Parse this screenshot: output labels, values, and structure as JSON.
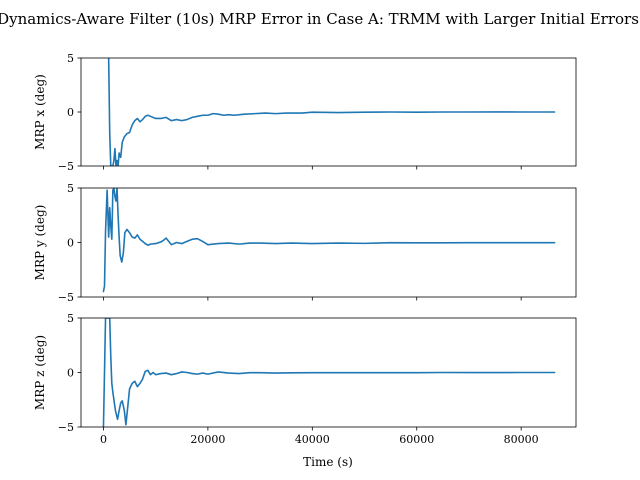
{
  "title": "Dynamics-Aware Filter (10s) MRP Error in Case A: TRMM with Larger Initial Errors",
  "xlabel": "Time (s)",
  "colors": {
    "series": "#1f77b4"
  },
  "chart_data": [
    {
      "type": "line",
      "ylabel": "MRP x (deg)",
      "xlim": [
        -4300,
        90500
      ],
      "ylim": [
        -5,
        5
      ],
      "xticks": [
        0,
        20000,
        40000,
        60000,
        80000
      ],
      "xtick_labels": [
        "",
        "",
        "",
        "",
        ""
      ],
      "yticks": [
        -5,
        0,
        5
      ],
      "ytick_labels": [
        "−5",
        "0",
        "5"
      ],
      "series": [
        {
          "x": [
            1000,
            1200,
            1400,
            1600,
            1800,
            2000,
            2200,
            2400,
            2600,
            2800,
            3000,
            3300,
            3600,
            4000,
            4500,
            5000,
            5500,
            6000,
            6500,
            7000,
            7500,
            8000,
            8500,
            9000,
            10000,
            11000,
            12000,
            13000,
            14000,
            15000,
            16000,
            17000,
            18000,
            19000,
            20000,
            21000,
            22000,
            23000,
            24000,
            25000,
            27000,
            29000,
            31000,
            33000,
            35000,
            38000,
            40000,
            45000,
            50000,
            55000,
            60000,
            65000,
            70000,
            75000,
            80000,
            86400
          ],
          "y": [
            5,
            -2,
            -5,
            -5,
            -5,
            -4.5,
            -3.4,
            -5,
            -4.5,
            -5,
            -3.8,
            -4.2,
            -2.8,
            -2.3,
            -2.0,
            -1.9,
            -1.2,
            -0.8,
            -0.6,
            -0.9,
            -0.7,
            -0.4,
            -0.3,
            -0.4,
            -0.6,
            -0.6,
            -0.5,
            -0.8,
            -0.7,
            -0.8,
            -0.7,
            -0.5,
            -0.4,
            -0.3,
            -0.3,
            -0.15,
            -0.2,
            -0.3,
            -0.25,
            -0.3,
            -0.2,
            -0.15,
            -0.1,
            -0.15,
            -0.1,
            -0.1,
            -0.02,
            -0.05,
            -0.02,
            0,
            -0.02,
            0,
            0,
            0.01,
            0,
            0
          ]
        }
      ]
    },
    {
      "type": "line",
      "ylabel": "MRP y (deg)",
      "xlim": [
        -4300,
        90500
      ],
      "ylim": [
        -5,
        5
      ],
      "xticks": [
        0,
        20000,
        40000,
        60000,
        80000
      ],
      "xtick_labels": [
        "",
        "",
        "",
        "",
        ""
      ],
      "yticks": [
        -5,
        0,
        5
      ],
      "ytick_labels": [
        "−5",
        "0",
        "5"
      ],
      "series": [
        {
          "x": [
            0,
            200,
            400,
            700,
            1000,
            1200,
            1400,
            1600,
            1800,
            2000,
            2200,
            2400,
            2600,
            2800,
            3000,
            3200,
            3500,
            3800,
            4100,
            4500,
            5000,
            5500,
            6000,
            6500,
            7000,
            7500,
            8000,
            8500,
            9000,
            10000,
            11000,
            11500,
            12000,
            13000,
            14000,
            15000,
            16000,
            17000,
            18000,
            19000,
            20000,
            22000,
            24000,
            26000,
            28000,
            30000,
            33000,
            36000,
            40000,
            45000,
            50000,
            55000,
            60000,
            65000,
            70000,
            75000,
            80000,
            86400
          ],
          "y": [
            -4.5,
            -4.0,
            1.0,
            4.8,
            0.5,
            3.2,
            1.5,
            0.3,
            4.8,
            5.0,
            4.2,
            3.8,
            5.0,
            2.5,
            0.5,
            -1.2,
            -1.8,
            -1.0,
            0.9,
            1.2,
            0.9,
            0.5,
            0.4,
            0.7,
            0.3,
            0.1,
            -0.1,
            -0.25,
            -0.15,
            -0.1,
            0.05,
            0.2,
            0.4,
            -0.2,
            0.0,
            -0.1,
            0.1,
            0.3,
            0.35,
            0.1,
            -0.2,
            -0.1,
            -0.05,
            -0.15,
            -0.05,
            -0.05,
            -0.1,
            -0.05,
            -0.1,
            -0.05,
            -0.08,
            -0.02,
            -0.03,
            -0.03,
            -0.02,
            -0.02,
            -0.02,
            -0.02
          ]
        }
      ]
    },
    {
      "type": "line",
      "ylabel": "MRP z (deg)",
      "xlim": [
        -4300,
        90500
      ],
      "ylim": [
        -5,
        5
      ],
      "xticks": [
        0,
        20000,
        40000,
        60000,
        80000
      ],
      "xtick_labels": [
        "0",
        "20000",
        "40000",
        "60000",
        "80000"
      ],
      "yticks": [
        -5,
        0,
        5
      ],
      "ytick_labels": [
        "−5",
        "0",
        "5"
      ],
      "series": [
        {
          "x": [
            0,
            200,
            400,
            600,
            800,
            1000,
            1200,
            1400,
            1600,
            1800,
            2000,
            2300,
            2700,
            3000,
            3300,
            3600,
            4000,
            4300,
            4600,
            5000,
            5500,
            6000,
            6500,
            7000,
            7500,
            8000,
            8500,
            9000,
            9500,
            10000,
            11000,
            12000,
            13000,
            14000,
            15000,
            16000,
            17000,
            18000,
            19000,
            20000,
            22000,
            24000,
            26000,
            28000,
            30000,
            33000,
            36000,
            40000,
            45000,
            50000,
            55000,
            60000,
            65000,
            70000,
            75000,
            80000,
            86400
          ],
          "y": [
            -5,
            0,
            5,
            5,
            5,
            5,
            5,
            1.5,
            -1.0,
            -1.8,
            -2.5,
            -3.5,
            -4.3,
            -3.5,
            -2.8,
            -2.6,
            -3.5,
            -4.8,
            -3.4,
            -1.5,
            -1.0,
            -0.8,
            -1.3,
            -1.0,
            -0.6,
            0.1,
            0.2,
            -0.2,
            0.0,
            -0.2,
            -0.1,
            -0.05,
            -0.2,
            -0.1,
            0.05,
            0.0,
            -0.1,
            -0.15,
            -0.05,
            -0.15,
            0.05,
            -0.05,
            -0.1,
            -0.02,
            -0.02,
            -0.05,
            -0.03,
            -0.02,
            -0.02,
            -0.02,
            -0.02,
            -0.02,
            0,
            -0.01,
            -0.01,
            0,
            0
          ]
        }
      ]
    }
  ]
}
